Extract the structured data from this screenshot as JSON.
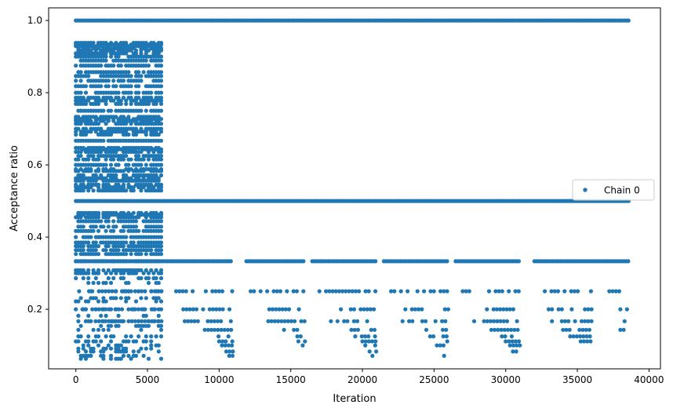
{
  "chart_data": {
    "type": "scatter",
    "title": "",
    "xlabel": "Iteration",
    "ylabel": "Acceptance ratio",
    "xlim": [
      -1900,
      40800
    ],
    "ylim": [
      0.035,
      1.035
    ],
    "xticks": [
      0,
      5000,
      10000,
      15000,
      20000,
      25000,
      30000,
      35000,
      40000
    ],
    "xtick_labels": [
      "0",
      "5000",
      "10000",
      "15000",
      "20000",
      "25000",
      "30000",
      "35000",
      "40000"
    ],
    "yticks": [
      0.2,
      0.4,
      0.6,
      0.8,
      1.0
    ],
    "ytick_labels": [
      "0.2",
      "0.4",
      "0.6",
      "0.8",
      "1.0"
    ],
    "grid": false,
    "legend_position": "right",
    "marker_color": "#1f77b4",
    "series": [
      {
        "name": "Chain 0",
        "bands": [
          {
            "y": 1.0,
            "x_ranges": [
              [
                0,
                38600
              ]
            ]
          },
          {
            "y": 0.5,
            "x_ranges": [
              [
                0,
                38600
              ]
            ]
          },
          {
            "y": 0.333,
            "x_ranges": [
              [
                0,
                10900
              ],
              [
                11900,
                15900
              ],
              [
                16500,
                21000
              ],
              [
                21500,
                26000
              ],
              [
                26500,
                31000
              ],
              [
                32000,
                38600
              ]
            ]
          },
          {
            "y": 0.25,
            "x_ranges": [
              [
                0,
                6000
              ],
              [
                7000,
                11000
              ],
              [
                12200,
                16000
              ],
              [
                17000,
                21000
              ],
              [
                22000,
                26000
              ],
              [
                27000,
                31000
              ],
              [
                32500,
                36000
              ],
              [
                37000,
                38600
              ]
            ]
          },
          {
            "y": 0.2,
            "x_ranges": [
              [
                0,
                6000
              ],
              [
                7500,
                11000
              ],
              [
                13500,
                16000
              ],
              [
                18500,
                21000
              ],
              [
                23000,
                26000
              ],
              [
                28000,
                31000
              ],
              [
                33000,
                36000
              ],
              [
                38000,
                38600
              ]
            ]
          },
          {
            "y": 0.167,
            "x_ranges": [
              [
                0,
                6000
              ],
              [
                7600,
                11000
              ],
              [
                13200,
                16000
              ],
              [
                17800,
                21000
              ],
              [
                22800,
                26000
              ],
              [
                27800,
                31000
              ],
              [
                33000,
                36000
              ],
              [
                38300,
                38600
              ]
            ]
          },
          {
            "y": 0.143,
            "x_ranges": [
              [
                9000,
                11000
              ],
              [
                14300,
                16000
              ],
              [
                19000,
                21000
              ],
              [
                24000,
                26000
              ],
              [
                29000,
                31000
              ],
              [
                34000,
                36000
              ],
              [
                38000,
                38600
              ]
            ]
          },
          {
            "y": 0.125,
            "x_ranges": [
              [
                9500,
                11000
              ],
              [
                15000,
                16000
              ],
              [
                19500,
                21000
              ],
              [
                24500,
                26000
              ],
              [
                29500,
                31000
              ],
              [
                34500,
                36000
              ]
            ]
          },
          {
            "y": 0.111,
            "x_ranges": [
              [
                10000,
                11000
              ],
              [
                15300,
                16000
              ],
              [
                20000,
                21000
              ],
              [
                25000,
                26000
              ],
              [
                30000,
                31000
              ],
              [
                35000,
                36000
              ]
            ]
          },
          {
            "y": 0.1,
            "x_ranges": [
              [
                10200,
                11000
              ],
              [
                15600,
                16000
              ],
              [
                20200,
                21000
              ],
              [
                25200,
                26000
              ],
              [
                30300,
                31000
              ],
              [
                35300,
                36000
              ]
            ]
          },
          {
            "y": 0.083,
            "x_ranges": [
              [
                10500,
                11000
              ],
              [
                20500,
                21000
              ],
              [
                25500,
                26000
              ],
              [
                30500,
                31000
              ]
            ]
          },
          {
            "y": 0.071,
            "x_ranges": [
              [
                10700,
                11000
              ],
              [
                20700,
                21000
              ],
              [
                25700,
                26000
              ],
              [
                30700,
                31000
              ]
            ]
          }
        ],
        "burn_in_x_range": [
          0,
          6000
        ],
        "burn_in_levels": [
          0.938,
          0.933,
          0.929,
          0.923,
          0.917,
          0.909,
          0.9,
          0.889,
          0.875,
          0.857,
          0.846,
          0.833,
          0.818,
          0.8,
          0.786,
          0.778,
          0.769,
          0.75,
          0.733,
          0.727,
          0.722,
          0.714,
          0.7,
          0.692,
          0.684,
          0.667,
          0.647,
          0.643,
          0.636,
          0.625,
          0.615,
          0.6,
          0.588,
          0.583,
          0.571,
          0.563,
          0.556,
          0.545,
          0.538,
          0.529,
          0.467,
          0.462,
          0.455,
          0.444,
          0.429,
          0.417,
          0.4,
          0.385,
          0.375,
          0.364,
          0.353,
          0.333,
          0.308,
          0.3,
          0.286,
          0.273,
          0.25,
          0.231,
          0.222,
          0.2,
          0.182,
          0.167,
          0.154,
          0.143,
          0.125,
          0.111,
          0.1,
          0.091,
          0.083,
          0.071,
          0.063
        ]
      }
    ]
  }
}
